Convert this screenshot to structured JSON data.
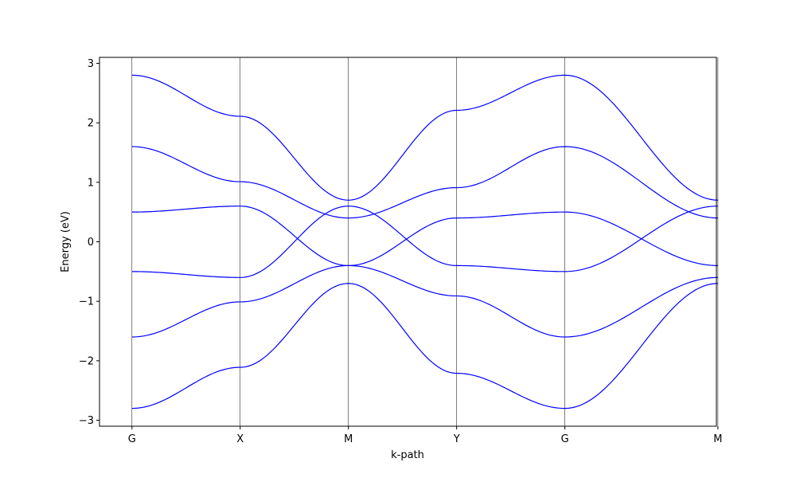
{
  "chart_data": {
    "type": "line",
    "title": "",
    "xlabel": "k-path",
    "ylabel": "Energy (eV)",
    "ylim": [
      -3.1,
      3.1
    ],
    "xlim": [
      -0.3,
      5.4
    ],
    "grid": false,
    "line_color": "#0000ff",
    "vline_color": "#000000",
    "high_symmetry_points": [
      {
        "label": "G",
        "x": 0
      },
      {
        "label": "X",
        "x": 1
      },
      {
        "label": "M",
        "x": 2
      },
      {
        "label": "Y",
        "x": 3
      },
      {
        "label": "G",
        "x": 4
      },
      {
        "label": "M",
        "x": 5.414
      }
    ],
    "y_ticks": [
      {
        "value": 3,
        "label": "3"
      },
      {
        "value": 2,
        "label": "2"
      },
      {
        "value": 1,
        "label": "1"
      },
      {
        "value": 0,
        "label": "0"
      },
      {
        "value": -1,
        "label": "−1"
      },
      {
        "value": -2,
        "label": "−2"
      },
      {
        "value": -3,
        "label": "−3"
      }
    ],
    "series": [
      {
        "x": [
          0,
          1,
          2,
          3,
          4,
          5.414
        ],
        "values": [
          2.8,
          2.11,
          0.7,
          2.21,
          2.8,
          0.7
        ]
      },
      {
        "x": [
          0,
          1,
          2,
          3,
          4,
          5.414
        ],
        "values": [
          1.6,
          1.01,
          0.4,
          0.91,
          1.6,
          0.4
        ]
      },
      {
        "x": [
          0,
          1,
          2,
          3,
          4,
          5.414
        ],
        "values": [
          0.5,
          0.6,
          -0.4,
          0.4,
          0.5,
          -0.4
        ]
      },
      {
        "x": [
          0,
          1,
          2,
          3,
          4,
          5.414
        ],
        "values": [
          -0.5,
          -0.6,
          0.6,
          -0.4,
          -0.5,
          0.6
        ]
      },
      {
        "x": [
          0,
          1,
          2,
          3,
          4,
          5.414
        ],
        "values": [
          -1.6,
          -1.01,
          -0.4,
          -0.91,
          -1.6,
          -0.6
        ]
      },
      {
        "x": [
          0,
          1,
          2,
          3,
          4,
          5.414
        ],
        "values": [
          -2.8,
          -2.11,
          -0.7,
          -2.21,
          -2.8,
          -0.7
        ]
      }
    ]
  }
}
